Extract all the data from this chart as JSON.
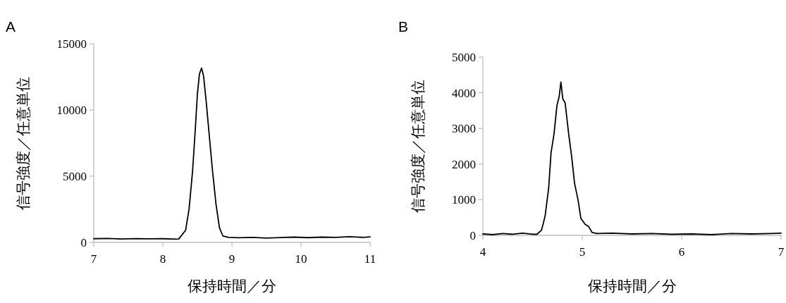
{
  "chart_data": [
    {
      "type": "line",
      "title": "A",
      "xlabel": "保持時間／分",
      "ylabel": "信号強度／任意単位",
      "xlim": [
        7,
        11
      ],
      "ylim": [
        0,
        15000
      ],
      "xticks": [
        7,
        8,
        9,
        10,
        11
      ],
      "yticks": [
        0,
        5000,
        10000,
        15000
      ],
      "x": [
        7.0,
        7.2,
        7.4,
        7.6,
        7.8,
        8.0,
        8.2,
        8.23,
        8.33,
        8.38,
        8.43,
        8.47,
        8.5,
        8.53,
        8.56,
        8.59,
        8.63,
        8.67,
        8.72,
        8.77,
        8.82,
        8.87,
        8.95,
        9.1,
        9.3,
        9.5,
        9.7,
        9.9,
        10.1,
        10.3,
        10.5,
        10.7,
        10.9,
        11.0
      ],
      "series": [
        {
          "color": "#000000",
          "values": [
            280,
            300,
            260,
            290,
            270,
            280,
            250,
            260,
            920,
            2520,
            5360,
            8550,
            11200,
            12710,
            13160,
            12550,
            10500,
            8190,
            5360,
            2870,
            1100,
            480,
            380,
            350,
            380,
            330,
            370,
            400,
            360,
            400,
            380,
            430,
            380,
            420
          ]
        }
      ]
    },
    {
      "type": "line",
      "title": "B",
      "xlabel": "保持時間／分",
      "ylabel": "信号強度／任意単位",
      "xlim": [
        4,
        7
      ],
      "ylim": [
        0,
        5000
      ],
      "xticks": [
        4,
        5,
        6,
        7
      ],
      "yticks": [
        0,
        1000,
        2000,
        3000,
        4000,
        5000
      ],
      "x": [
        4.0,
        4.1,
        4.2,
        4.3,
        4.4,
        4.5,
        4.544,
        4.59,
        4.626,
        4.662,
        4.686,
        4.716,
        4.745,
        4.768,
        4.785,
        4.804,
        4.828,
        4.863,
        4.894,
        4.922,
        4.957,
        4.986,
        5.028,
        5.064,
        5.099,
        5.147,
        5.3,
        5.5,
        5.7,
        5.9,
        6.1,
        6.3,
        6.5,
        6.7,
        6.9,
        7.0
      ],
      "series": [
        {
          "color": "#000000",
          "values": [
            40,
            20,
            50,
            30,
            60,
            30,
            30,
            145,
            540,
            1330,
            2320,
            2850,
            3640,
            3900,
            4300,
            3830,
            3710,
            2850,
            2190,
            1465,
            1000,
            475,
            310,
            245,
            80,
            50,
            60,
            40,
            50,
            30,
            40,
            20,
            50,
            40,
            50,
            60
          ]
        }
      ]
    }
  ]
}
